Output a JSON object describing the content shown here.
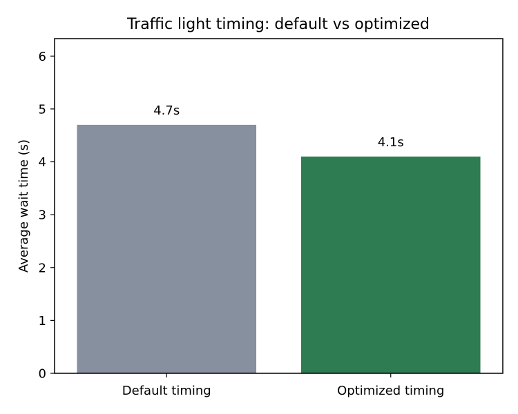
{
  "chart_data": {
    "type": "bar",
    "title": "Traffic light timing: default vs optimized",
    "xlabel": "",
    "ylabel": "Average wait time (s)",
    "categories": [
      "Default timing",
      "Optimized timing"
    ],
    "values": [
      4.7,
      4.1
    ],
    "data_labels": [
      "4.7s",
      "4.1s"
    ],
    "colors": [
      "#87909e",
      "#2e7d52"
    ],
    "ylim": [
      0,
      6.33
    ],
    "yticks": [
      0,
      1,
      2,
      3,
      4,
      5,
      6
    ],
    "grid": false,
    "legend": "none"
  }
}
